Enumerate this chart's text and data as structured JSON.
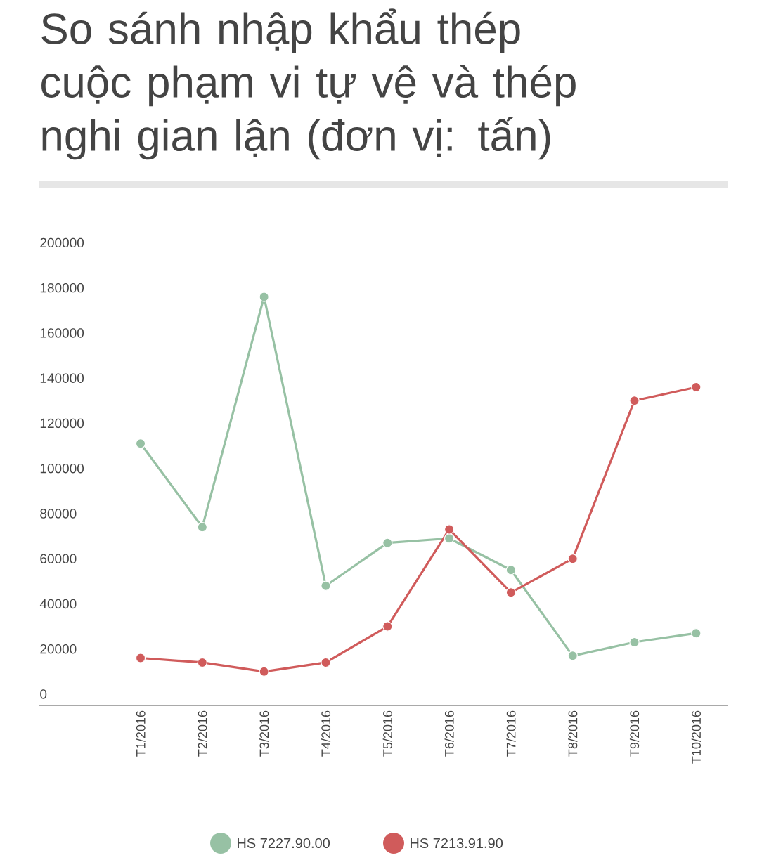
{
  "chart_data": {
    "type": "line",
    "title": "So sánh nhập khẩu thép cuộc phạm vi tự vệ và thép nghi gian lận (đơn vị: tấn)",
    "categories": [
      "T1/2016",
      "T2/2016",
      "T3/2016",
      "T4/2016",
      "T5/2016",
      "T6/2016",
      "T7/2016",
      "T8/2016",
      "T9/2016",
      "T10/2016"
    ],
    "series": [
      {
        "name": "HS 7227.90.00",
        "color": "#97c1a4",
        "values": [
          111000,
          74000,
          176000,
          48000,
          67000,
          69000,
          55000,
          17000,
          23000,
          27000
        ]
      },
      {
        "name": "HS 7213.91.90",
        "color": "#d05b5b",
        "values": [
          16000,
          14000,
          10000,
          14000,
          30000,
          73000,
          45000,
          60000,
          130000,
          136000
        ]
      }
    ],
    "ylim": [
      -5000,
      200000
    ],
    "yticks": [
      0,
      20000,
      40000,
      60000,
      80000,
      100000,
      120000,
      140000,
      160000,
      180000,
      200000
    ],
    "grid": false,
    "legend": "bottom",
    "marker": "circle",
    "line_style": "solid"
  }
}
